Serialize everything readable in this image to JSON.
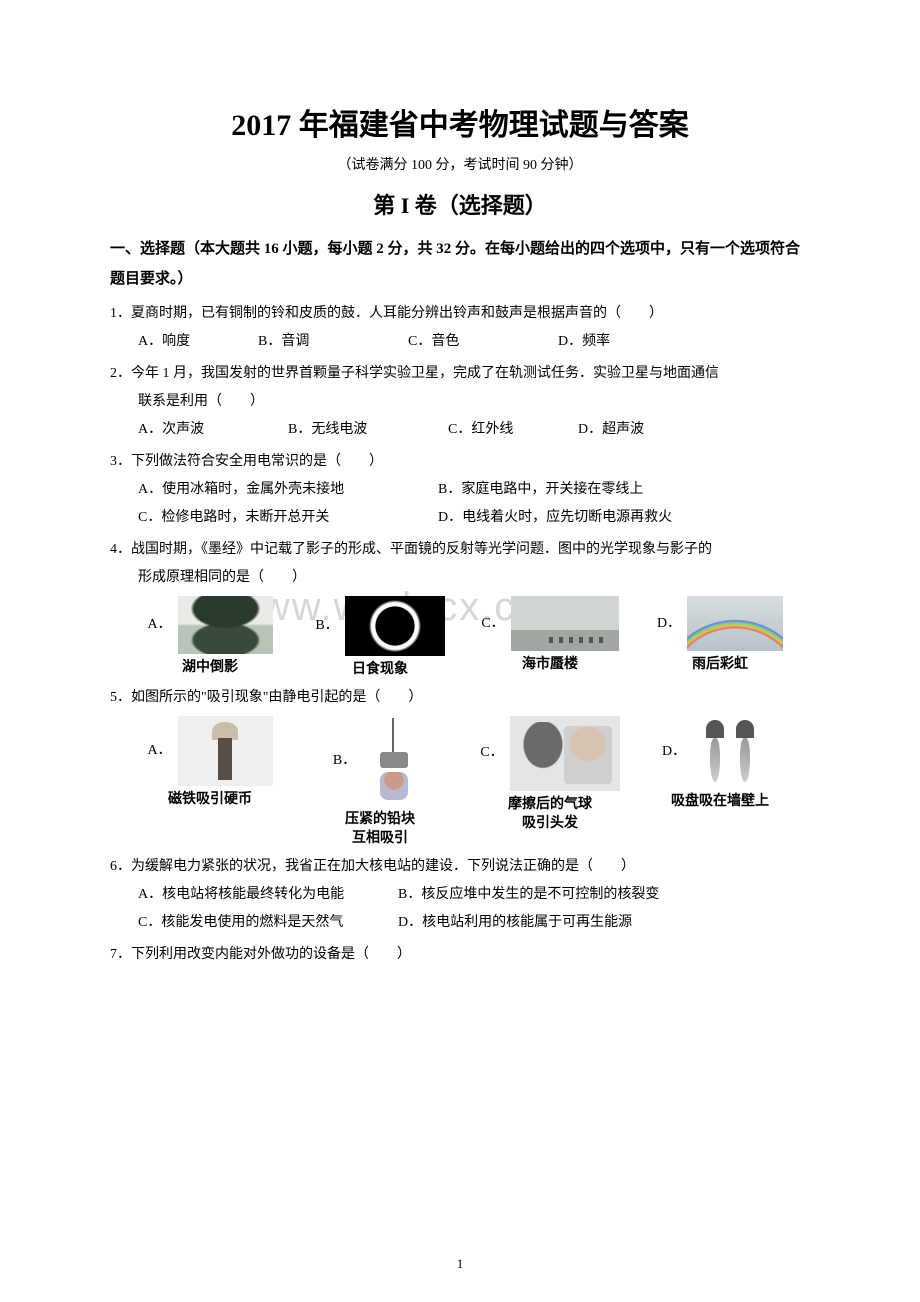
{
  "colors": {
    "text": "#000000",
    "background": "#ffffff",
    "watermark": "#d6d6d6",
    "placeholder_bg": "#dddddd"
  },
  "typography": {
    "body_font": "SimSun",
    "title_size_pt": 22,
    "section_size_pt": 16,
    "body_size_pt": 10.5,
    "instruction_weight": "bold",
    "caption_weight": "bold"
  },
  "watermark": "www.wodocx.com",
  "page_number": "1",
  "title": "2017 年福建省中考物理试题与答案",
  "subtitle": "（试卷满分 100 分，考试时间 90 分钟）",
  "section_header": "第 I 卷（选择题）",
  "instruction": "一、选择题（本大题共 16 小题，每小题 2 分，共 32 分。在每小题给出的四个选项中，只有一个选项符合题目要求。）",
  "questions": [
    {
      "num": "1",
      "text": "1．夏商时期，已有铜制的铃和皮质的鼓．人耳能分辨出铃声和鼓声是根据声音的（　　）",
      "options": [
        "A．响度",
        "B．音调",
        "C．音色",
        "D．频率"
      ],
      "layout": "inline4"
    },
    {
      "num": "2",
      "text": "2．今年 1 月，我国发射的世界首颗量子科学实验卫星，完成了在轨测试任务．实验卫星与地面通信联系是利用（　　）",
      "indent_tail": "联系是利用（　　）",
      "options": [
        "A．次声波",
        "B．无线电波",
        "C．红外线",
        "D．超声波"
      ],
      "layout": "inline4"
    },
    {
      "num": "3",
      "text": "3．下列做法符合安全用电常识的是（　　）",
      "options": [
        "A．使用冰箱时，金属外壳未接地",
        "B．家庭电路中，开关接在零线上",
        "C．检修电路时，未断开总开关",
        "D．电线着火时，应先切断电源再救火"
      ],
      "layout": "two-col"
    },
    {
      "num": "4",
      "text": "4．战国时期，《墨经》中记载了影子的形成、平面镜的反射等光学问题．图中的光学现象与影子的形成原理相同的是（　　）",
      "indent_tail": "形成原理相同的是（　　）",
      "figures": [
        {
          "letter": "A．",
          "caption": "湖中倒影",
          "img_class": "img-lake"
        },
        {
          "letter": "B．",
          "caption": "日食现象",
          "img_class": "img-eclipse"
        },
        {
          "letter": "C．",
          "caption": "海市蜃楼",
          "img_class": "img-mirage"
        },
        {
          "letter": "D．",
          "caption": "雨后彩虹",
          "img_class": "img-rainbow"
        }
      ]
    },
    {
      "num": "5",
      "text": "5．如图所示的\"吸引现象\"由静电引起的是（　　）",
      "figures": [
        {
          "letter": "A．",
          "caption": "磁铁吸引硬币",
          "img_class": "img-magnet"
        },
        {
          "letter": "B．",
          "caption": "压紧的铅块\n互相吸引",
          "img_class": "img-lead"
        },
        {
          "letter": "C．",
          "caption": "摩擦后的气球\n吸引头发",
          "img_class": "img-balloon"
        },
        {
          "letter": "D．",
          "caption": "吸盘吸在墙壁上",
          "img_class": "img-suction"
        }
      ]
    },
    {
      "num": "6",
      "text": "6．为缓解电力紧张的状况，我省正在加大核电站的建设．下列说法正确的是（　　）",
      "options": [
        "A．核电站将核能最终转化为电能",
        "B．核反应堆中发生的是不可控制的核裂变",
        "C．核能发电使用的燃料是天然气",
        "D．核电站利用的核能属于可再生能源"
      ],
      "layout": "two-col-narrow"
    },
    {
      "num": "7",
      "text": "7．下列利用改变内能对外做功的设备是（　　）"
    }
  ]
}
